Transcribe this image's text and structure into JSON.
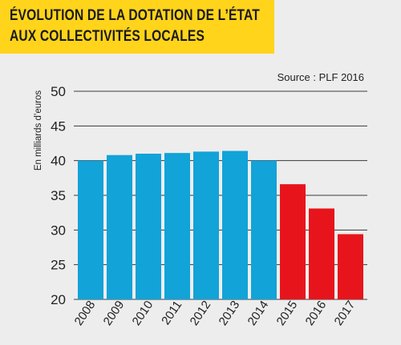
{
  "chart_data": {
    "type": "bar",
    "title_lines": [
      "ÉVOLUTION DE LA DOTATION DE L’ÉTAT",
      "AUX COLLECTIVITÉS LOCALES"
    ],
    "source": "Source : PLF 2016",
    "ylabel": "En milliards d’euros",
    "xlabel": "",
    "categories": [
      "2008",
      "2009",
      "2010",
      "2011",
      "2012",
      "2013",
      "2014",
      "2015",
      "2016",
      "2017"
    ],
    "values": [
      40.0,
      40.8,
      41.0,
      41.1,
      41.3,
      41.4,
      40.0,
      36.6,
      33.1,
      29.4
    ],
    "bar_colors": [
      "#12a3d8",
      "#12a3d8",
      "#12a3d8",
      "#12a3d8",
      "#12a3d8",
      "#12a3d8",
      "#12a3d8",
      "#e8141b",
      "#e8141b",
      "#e8141b"
    ],
    "ylim": [
      20,
      50
    ],
    "yticks": [
      20,
      25,
      30,
      35,
      40,
      45,
      50
    ],
    "grid": true,
    "title_background": "#ffd41a",
    "gridline_color": "#3a3a3a"
  }
}
